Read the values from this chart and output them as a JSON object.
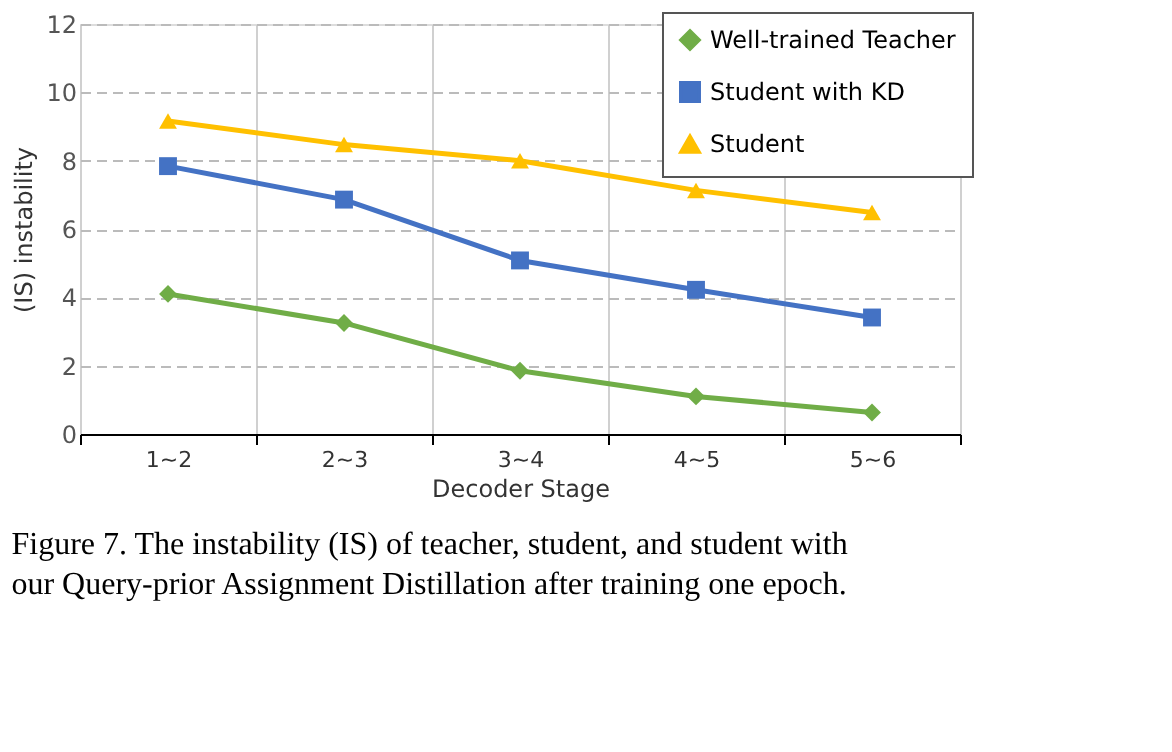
{
  "chart_data": {
    "type": "line",
    "xlabel": "Decoder Stage",
    "ylabel": "(IS) instability",
    "categories": [
      "1~2",
      "2~3",
      "3~4",
      "4~5",
      "5~6"
    ],
    "series": [
      {
        "name": "Well-trained Teacher",
        "color": "#70ad47",
        "marker": "diamond",
        "values": [
          4.1,
          3.25,
          1.85,
          1.1,
          0.63
        ]
      },
      {
        "name": "Student with KD",
        "color": "#4472c4",
        "marker": "square",
        "values": [
          7.84,
          6.86,
          5.08,
          4.22,
          3.41
        ]
      },
      {
        "name": "Student",
        "color": "#ffc000",
        "marker": "triangle",
        "values": [
          9.16,
          8.47,
          8.0,
          7.13,
          6.48
        ]
      }
    ],
    "ylim": [
      0,
      12
    ],
    "yticks": [
      0,
      2,
      4,
      6,
      8,
      10,
      12
    ],
    "grid": true,
    "legend": "top right",
    "line_style": "solid",
    "annotations": [
      "Figure 7. The instability (IS) of teacher, student, and student with",
      "our Query-prior Assignment Distillation after training one epoch."
    ]
  }
}
